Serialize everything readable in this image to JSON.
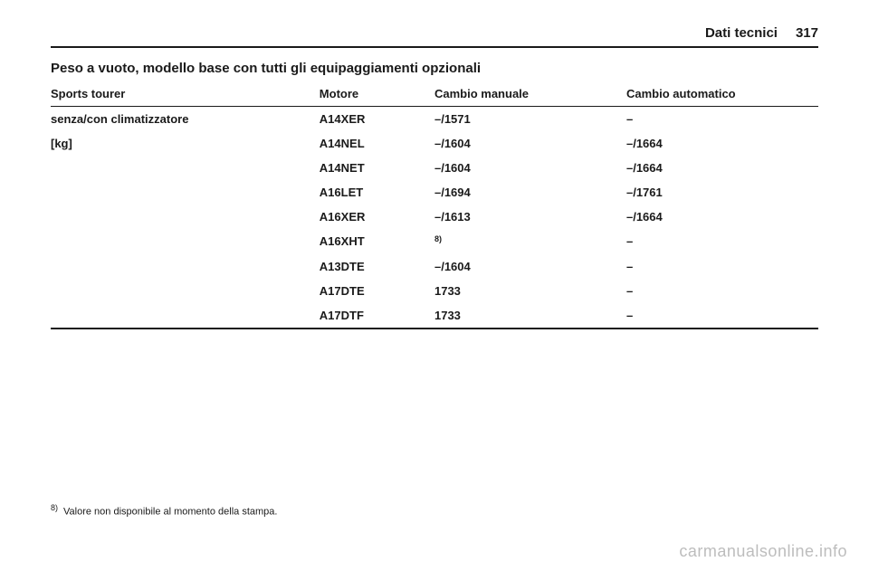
{
  "header": {
    "section": "Dati tecnici",
    "page": "317"
  },
  "title": "Peso a vuoto, modello base con tutti gli equipaggiamenti opzionali",
  "table": {
    "columns": [
      "Sports tourer",
      "Motore",
      "Cambio manuale",
      "Cambio automatico"
    ],
    "rowlabel_line1": "senza/con climatizzatore",
    "rowlabel_line2": "[kg]",
    "rows": [
      {
        "engine": "A14XER",
        "manual": "–/1571",
        "auto": "–",
        "sup": false
      },
      {
        "engine": "A14NEL",
        "manual": "–/1604",
        "auto": "–/1664",
        "sup": false
      },
      {
        "engine": "A14NET",
        "manual": "–/1604",
        "auto": "–/1664",
        "sup": false
      },
      {
        "engine": "A16LET",
        "manual": "–/1694",
        "auto": "–/1761",
        "sup": false
      },
      {
        "engine": "A16XER",
        "manual": "–/1613",
        "auto": "–/1664",
        "sup": false
      },
      {
        "engine": "A16XHT",
        "manual": "",
        "auto": "–",
        "sup": true
      },
      {
        "engine": "A13DTE",
        "manual": "–/1604",
        "auto": "–",
        "sup": false
      },
      {
        "engine": "A17DTE",
        "manual": "1733",
        "auto": "–",
        "sup": false
      },
      {
        "engine": "A17DTF",
        "manual": "1733",
        "auto": "–",
        "sup": false
      }
    ]
  },
  "footnote": {
    "num": "8)",
    "text": "Valore non disponibile al momento della stampa."
  },
  "watermark": "carmanualsonline.info",
  "sup_marker": "8)"
}
